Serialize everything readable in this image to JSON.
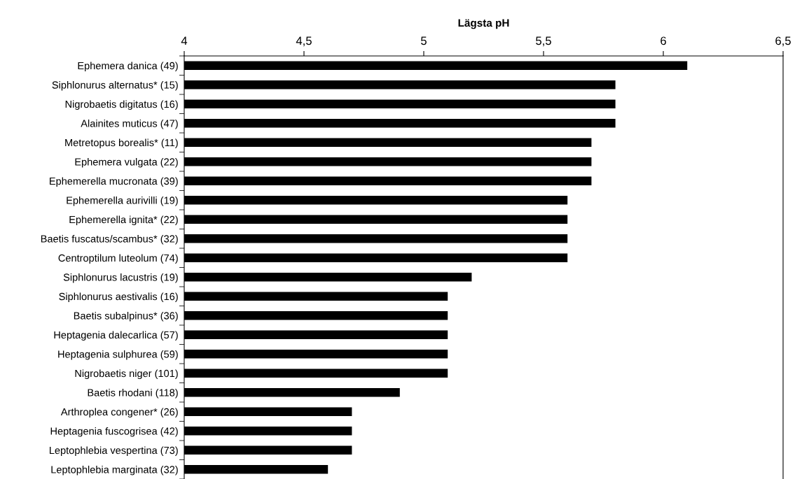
{
  "chart_data": {
    "type": "bar",
    "orientation": "horizontal",
    "xlabel": "Lägsta pH",
    "categories": [
      "Ephemera danica (49)",
      "Siphlonurus alternatus* (15)",
      "Nigrobaetis digitatus (16)",
      "Alainites muticus (47)",
      "Metretopus borealis* (11)",
      "Ephemera vulgata (22)",
      "Ephemerella mucronata (39)",
      "Ephemerella aurivilli (19)",
      "Ephemerella ignita* (22)",
      "Baetis fuscatus/scambus* (32)",
      "Centroptilum luteolum (74)",
      "Siphlonurus lacustris (19)",
      "Siphlonurus aestivalis (16)",
      "Baetis subalpinus* (36)",
      "Heptagenia dalecarlica (57)",
      "Heptagenia sulphurea (59)",
      "Nigrobaetis niger (101)",
      "Baetis rhodani (118)",
      "Arthroplea congener* (26)",
      "Heptagenia fuscogrisea (42)",
      "Leptophlebia vespertina (73)",
      "Leptophlebia marginata (32)"
    ],
    "values": [
      6.1,
      5.8,
      5.8,
      5.8,
      5.7,
      5.7,
      5.7,
      5.6,
      5.6,
      5.6,
      5.6,
      5.2,
      5.1,
      5.1,
      5.1,
      5.1,
      5.1,
      4.9,
      4.7,
      4.7,
      4.7,
      4.6
    ],
    "color": "#000000",
    "xlim": [
      4,
      6.5
    ],
    "xticks": [
      4,
      {
        "value": 4.5,
        "label": "4,5"
      },
      5,
      {
        "value": 5.5,
        "label": "5,5"
      },
      6,
      {
        "value": 6.5,
        "label": "6,5"
      }
    ],
    "grid": false,
    "legend": false
  }
}
